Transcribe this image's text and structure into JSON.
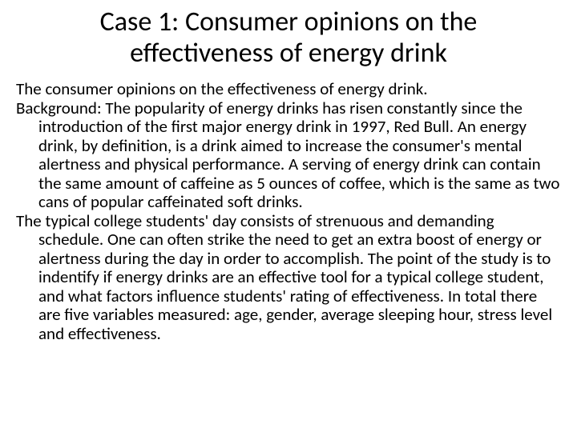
{
  "slide": {
    "title": "Case 1: Consumer opinions on the effectiveness of energy drink",
    "paragraph1": "The consumer opinions on the effectiveness of energy drink.",
    "paragraph2": "Background: The popularity of energy drinks has risen constantly since the introduction of the first major energy drink in 1997, Red Bull. An energy drink, by definition, is a drink aimed to increase the consumer's mental alertness and physical performance. A serving of energy drink can contain the same amount of caffeine as 5 ounces of coffee, which is the same as two cans of popular caffeinated soft drinks.",
    "paragraph3": "The typical college students' day consists of strenuous and demanding schedule. One can often strike the need to get an extra boost of energy or alertness during the day in order to accomplish. The point of the study is to indentify if energy drinks are an effective tool for a typical college student, and what factors influence students' rating of effectiveness. In total there are five variables measured:  age, gender, average sleeping hour, stress level and effectiveness."
  },
  "styling": {
    "background_color": "#ffffff",
    "text_color": "#000000",
    "title_fontsize": 34,
    "body_fontsize": 21,
    "font_family": "Calibri"
  }
}
